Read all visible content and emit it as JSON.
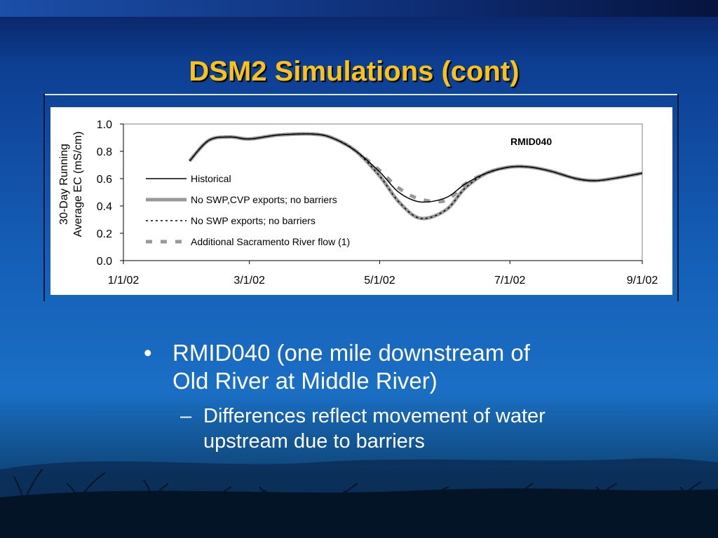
{
  "slide": {
    "title": "DSM2 Simulations (cont)"
  },
  "chart_data": {
    "type": "line",
    "station_label": "RMID040",
    "ylabel_lines": [
      "30-Day Running",
      "Average EC (mS/cm)"
    ],
    "ylim": [
      0,
      1.0
    ],
    "yticks": [
      "0.0",
      "0.2",
      "0.4",
      "0.6",
      "0.8",
      "1.0"
    ],
    "xlim": [
      "2002-01-01",
      "2002-09-01"
    ],
    "xticks": [
      "1/1/02",
      "3/1/02",
      "5/1/02",
      "7/1/02",
      "9/1/02"
    ],
    "grid": false,
    "legend_position": "left, inside plot",
    "series": [
      {
        "name": "Historical",
        "color": "#000000",
        "style": "solid",
        "x": [
          "2002-02-01",
          "2002-02-10",
          "2002-02-20",
          "2002-03-01",
          "2002-03-15",
          "2002-04-01",
          "2002-04-10",
          "2002-04-20",
          "2002-05-01",
          "2002-05-10",
          "2002-05-20",
          "2002-06-01",
          "2002-06-10",
          "2002-06-20",
          "2002-07-01",
          "2002-07-10",
          "2002-07-20",
          "2002-08-01",
          "2002-08-10",
          "2002-08-20",
          "2002-09-01"
        ],
        "y": [
          0.73,
          0.88,
          0.905,
          0.89,
          0.92,
          0.925,
          0.89,
          0.8,
          0.65,
          0.5,
          0.43,
          0.46,
          0.56,
          0.64,
          0.685,
          0.685,
          0.655,
          0.6,
          0.585,
          0.605,
          0.64
        ]
      },
      {
        "name": "No SWP,CVP exports; no barriers",
        "color": "#999999",
        "style": "thick",
        "x": [
          "2002-02-01",
          "2002-02-10",
          "2002-02-20",
          "2002-03-01",
          "2002-03-15",
          "2002-04-01",
          "2002-04-10",
          "2002-04-20",
          "2002-05-01",
          "2002-05-10",
          "2002-05-20",
          "2002-06-01",
          "2002-06-10",
          "2002-06-20",
          "2002-07-01",
          "2002-07-10",
          "2002-07-20",
          "2002-08-01",
          "2002-08-10",
          "2002-08-20",
          "2002-09-01"
        ],
        "y": [
          0.73,
          0.88,
          0.905,
          0.89,
          0.92,
          0.925,
          0.89,
          0.8,
          0.62,
          0.43,
          0.31,
          0.37,
          0.53,
          0.64,
          0.685,
          0.685,
          0.655,
          0.6,
          0.585,
          0.605,
          0.64
        ]
      },
      {
        "name": "No SWP exports; no barriers",
        "color": "#000000",
        "style": "dotted",
        "x": [
          "2002-02-01",
          "2002-02-10",
          "2002-02-20",
          "2002-03-01",
          "2002-03-15",
          "2002-04-01",
          "2002-04-10",
          "2002-04-20",
          "2002-05-01",
          "2002-05-10",
          "2002-05-20",
          "2002-06-01",
          "2002-06-10",
          "2002-06-20",
          "2002-07-01",
          "2002-07-10",
          "2002-07-20",
          "2002-08-01",
          "2002-08-10",
          "2002-08-20",
          "2002-09-01"
        ],
        "y": [
          0.73,
          0.88,
          0.905,
          0.89,
          0.92,
          0.925,
          0.89,
          0.8,
          0.62,
          0.43,
          0.31,
          0.37,
          0.53,
          0.64,
          0.685,
          0.685,
          0.655,
          0.6,
          0.585,
          0.605,
          0.64
        ]
      },
      {
        "name": "Additional Sacramento River flow (1)",
        "color": "#999999",
        "style": "dashed",
        "x": [
          "2002-02-01",
          "2002-02-10",
          "2002-02-20",
          "2002-03-01",
          "2002-03-15",
          "2002-04-01",
          "2002-04-10",
          "2002-04-20",
          "2002-05-01",
          "2002-05-10",
          "2002-05-20",
          "2002-06-01",
          "2002-06-10",
          "2002-06-20",
          "2002-07-01",
          "2002-07-10",
          "2002-07-20",
          "2002-08-01",
          "2002-08-10",
          "2002-08-20",
          "2002-09-01"
        ],
        "y": [
          0.73,
          0.88,
          0.905,
          0.89,
          0.92,
          0.925,
          0.89,
          0.8,
          0.66,
          0.53,
          0.45,
          0.44,
          0.56,
          0.64,
          0.685,
          0.685,
          0.655,
          0.6,
          0.585,
          0.605,
          0.64
        ]
      }
    ]
  },
  "bullets": {
    "main_marker": "•",
    "main_text_line1": "RMID040 (one mile downstream of",
    "main_text_line2": "Old River at Middle River)",
    "sub_marker": "–",
    "sub_text_line1": "Differences reflect movement of water",
    "sub_text_line2": "upstream due to barriers"
  },
  "theme": {
    "title_color": "#f8c21c",
    "text_color": "#ffffff",
    "chart_background": "#ffffff"
  }
}
